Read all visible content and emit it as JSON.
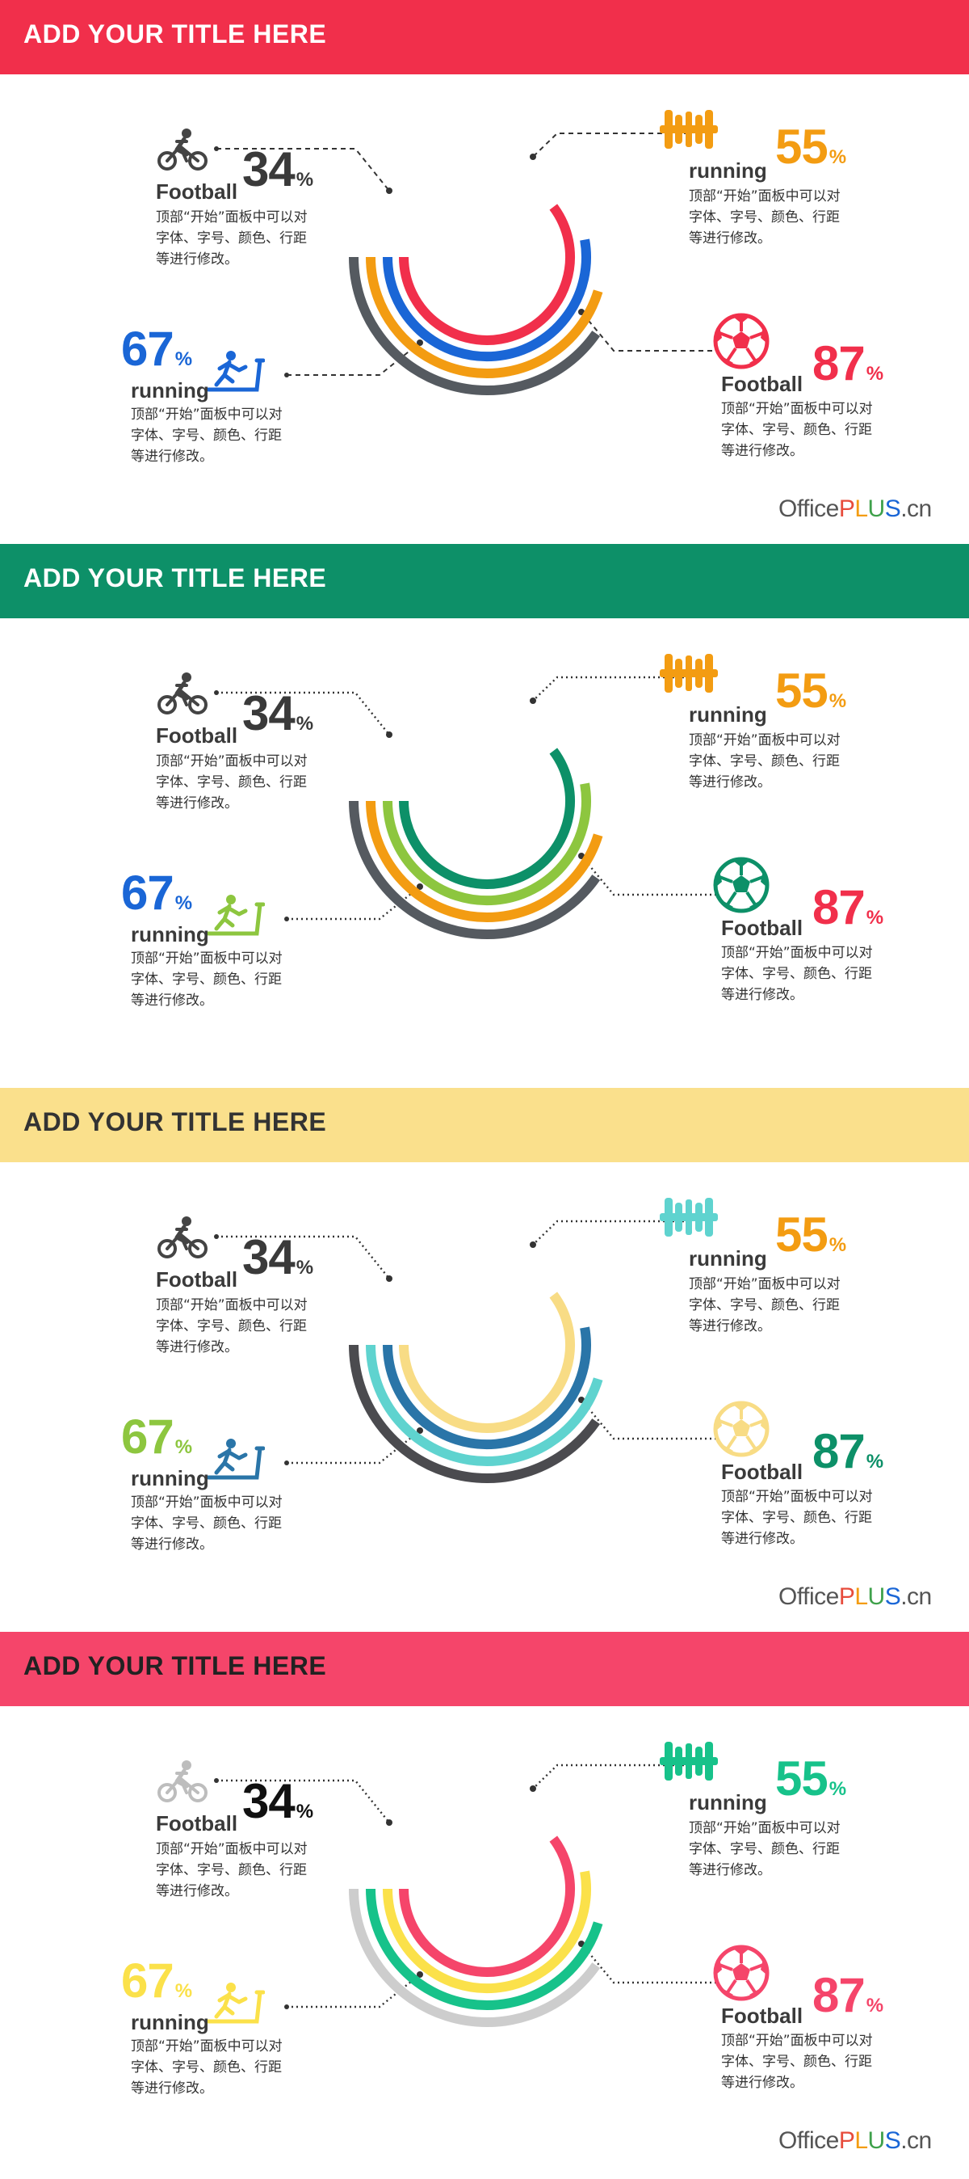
{
  "slides": [
    {
      "title": "ADD YOUR TITLE HERE",
      "colors": {
        "bar": "#f12f4b",
        "title_text": "#ffffff",
        "ring_outer": "#555a60",
        "ring_2": "#f39c12",
        "ring_3": "#1a66d6",
        "ring_inner": "#f12f4b",
        "icon_tl": "#444444",
        "icon_tr": "#f39c12",
        "icon_bl": "#1a66d6",
        "icon_br": "#f12f4b",
        "pct_tl": "#3a3a3a",
        "pct_tr": "#f39c12",
        "pct_bl": "#1a66d6",
        "pct_br": "#f12f4b"
      },
      "leader_style": "dashed",
      "show_logo": true
    },
    {
      "title": "ADD YOUR TITLE HERE",
      "colors": {
        "bar": "#0d9068",
        "title_text": "#ffffff",
        "ring_outer": "#555a60",
        "ring_2": "#f39c12",
        "ring_3": "#8dc63f",
        "ring_inner": "#0d9068",
        "icon_tl": "#444444",
        "icon_tr": "#f39c12",
        "icon_bl": "#8dc63f",
        "icon_br": "#0d9068",
        "pct_tl": "#3a3a3a",
        "pct_tr": "#f39c12",
        "pct_bl": "#1a66d6",
        "pct_br": "#f12f4b"
      },
      "leader_style": "dotted",
      "show_logo": false
    },
    {
      "title": "ADD YOUR TITLE HERE",
      "colors": {
        "bar": "#fae08c",
        "title_text": "#333333",
        "ring_outer": "#4b4b4f",
        "ring_2": "#5fd3cf",
        "ring_3": "#2a75a8",
        "ring_inner": "#f8dc85",
        "icon_tl": "#444444",
        "icon_tr": "#5fd3cf",
        "icon_bl": "#2a75a8",
        "icon_br": "#f8dc85",
        "pct_tl": "#3a3a3a",
        "pct_tr": "#f39c12",
        "pct_bl": "#8dc63f",
        "pct_br": "#0d9068"
      },
      "leader_style": "dotted",
      "show_logo": true
    },
    {
      "title": "ADD YOUR TITLE HERE",
      "colors": {
        "bar": "#f5456a",
        "title_text": "#222222",
        "ring_outer": "#cdcdcd",
        "ring_2": "#17c28a",
        "ring_3": "#fbe14a",
        "ring_inner": "#f5456a",
        "icon_tl": "#bdbdbd",
        "icon_tr": "#17c28a",
        "icon_bl": "#fbe14a",
        "icon_br": "#f5456a",
        "pct_tl": "#111111",
        "pct_tr": "#17c28a",
        "pct_bl": "#fbe14a",
        "pct_br": "#f5456a"
      },
      "leader_style": "dotted",
      "show_logo": true
    }
  ],
  "items": {
    "tl": {
      "label": "Football",
      "value": "34",
      "unit": "%",
      "icon": "bicycle-icon"
    },
    "tr": {
      "label": "running",
      "value": "55",
      "unit": "%",
      "icon": "dumbbell-icon"
    },
    "bl": {
      "label": "running",
      "value": "67",
      "unit": "%",
      "icon": "treadmill-icon"
    },
    "br": {
      "label": "Football",
      "value": "87",
      "unit": "%",
      "icon": "soccer-ball-icon"
    }
  },
  "description": "顶部“开始”面板中可以对字体、字号、颜色、行距等进行修改。",
  "logo": {
    "office": "Office",
    "plus_p": "P",
    "plus_l": "L",
    "plus_u": "U",
    "plus_s": "S",
    "cn": ".cn"
  }
}
